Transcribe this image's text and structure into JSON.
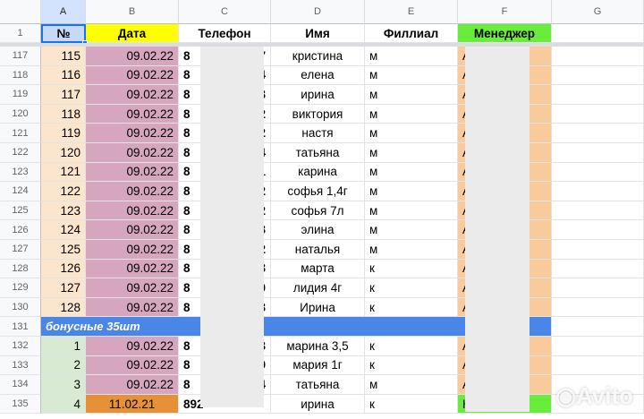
{
  "columns": [
    "A",
    "B",
    "C",
    "D",
    "E",
    "F",
    "G"
  ],
  "header_row": {
    "num": "1",
    "cells": [
      "№",
      "Дата",
      "Телефон",
      "Имя",
      "Филлиал",
      "Менеджер",
      ""
    ]
  },
  "colors": {
    "num_bg": "#fce5cd",
    "date_bg": "#d5a6bd",
    "date_hdr": "#ffff00",
    "manager_bg": "#f9cb9c",
    "manager_hdr": "#6aec3c",
    "bonus_bg": "#4a86e8",
    "bonus_num_bg": "#d9ead3",
    "last_date_bg": "#e69138",
    "last_manager_bg": "#6aec3c"
  },
  "rows": [
    {
      "r": "117",
      "n": "115",
      "d": "09.02.22",
      "p1": "8",
      "p2": "7",
      "name": "кристина",
      "br": "м",
      "m": "А"
    },
    {
      "r": "118",
      "n": "116",
      "d": "09.02.22",
      "p1": "8",
      "p2": "4",
      "name": "елена",
      "br": "м",
      "m": "А"
    },
    {
      "r": "119",
      "n": "117",
      "d": "09.02.22",
      "p1": "8",
      "p2": "3",
      "name": "ирина",
      "br": "м",
      "m": "А"
    },
    {
      "r": "120",
      "n": "118",
      "d": "09.02.22",
      "p1": "8",
      "p2": "2",
      "name": "виктория",
      "br": "м",
      "m": "А"
    },
    {
      "r": "121",
      "n": "119",
      "d": "09.02.22",
      "p1": "8",
      "p2": "2",
      "name": "настя",
      "br": "м",
      "m": "А"
    },
    {
      "r": "122",
      "n": "120",
      "d": "09.02.22",
      "p1": "8",
      "p2": "4",
      "name": "татьяна",
      "br": "м",
      "m": "А"
    },
    {
      "r": "123",
      "n": "121",
      "d": "09.02.22",
      "p1": "8",
      "p2": "1",
      "name": "карина",
      "br": "м",
      "m": "А"
    },
    {
      "r": "124",
      "n": "122",
      "d": "09.02.22",
      "p1": "8",
      "p2": "2",
      "name": "софья 1,4г",
      "br": "м",
      "m": "А"
    },
    {
      "r": "125",
      "n": "123",
      "d": "09.02.22",
      "p1": "8",
      "p2": "2",
      "name": "софья 7л",
      "br": "м",
      "m": "А"
    },
    {
      "r": "126",
      "n": "124",
      "d": "09.02.22",
      "p1": "8",
      "p2": "3",
      "name": "элина",
      "br": "м",
      "m": "А"
    },
    {
      "r": "127",
      "n": "125",
      "d": "09.02.22",
      "p1": "8",
      "p2": "2",
      "name": "наталья",
      "br": "м",
      "m": "А"
    },
    {
      "r": "128",
      "n": "126",
      "d": "09.02.22",
      "p1": "8",
      "p2": "3",
      "name": "марта",
      "br": "к",
      "m": "А"
    },
    {
      "r": "129",
      "n": "127",
      "d": "09.02.22",
      "p1": "8",
      "p2": "0",
      "name": "лидия 4г",
      "br": "к",
      "m": "А"
    },
    {
      "r": "130",
      "n": "128",
      "d": "09.02.22",
      "p1": "8",
      "p2": "3",
      "name": "Ирина",
      "br": "к",
      "m": "А"
    },
    {
      "r": "131",
      "bonus": "бонусные 35шт"
    },
    {
      "r": "132",
      "n": "1",
      "d": "09.02.22",
      "p1": "8",
      "p2": "3",
      "name": "марина 3,5",
      "br": "к",
      "m": "А",
      "kind": "bonus"
    },
    {
      "r": "133",
      "n": "2",
      "d": "09.02.22",
      "p1": "8",
      "p2": "9",
      "name": "мария 1г",
      "br": "к",
      "m": "А",
      "kind": "bonus"
    },
    {
      "r": "134",
      "n": "3",
      "d": "09.02.22",
      "p1": "8",
      "p2": "4",
      "name": "татьяна",
      "br": "м",
      "m": "А",
      "kind": "bonus"
    },
    {
      "r": "135",
      "n": "4",
      "d": "11.02.21",
      "p1": "892",
      "p2": "",
      "name": "ирина",
      "br": "к",
      "m": "Кр",
      "kind": "last"
    }
  ],
  "watermark": "Avito"
}
